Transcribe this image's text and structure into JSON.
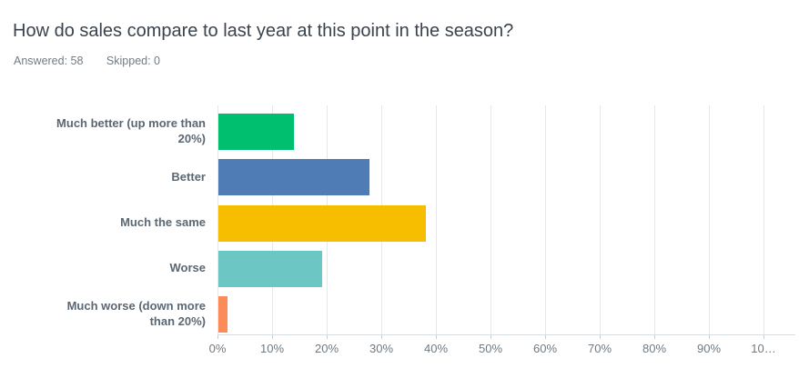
{
  "header": {
    "title": "How do sales compare to last year at this point in the season?",
    "answered_label": "Answered: 58",
    "skipped_label": "Skipped: 0"
  },
  "chart_data": {
    "type": "bar",
    "orientation": "horizontal",
    "title": "How do sales compare to last year at this point in the season?",
    "categories": [
      "Much better (up more than 20%)",
      "Better",
      "Much the same",
      "Worse",
      "Much worse (down more than 20%)"
    ],
    "values": [
      13.79,
      27.59,
      37.93,
      18.97,
      1.72
    ],
    "bar_colors": [
      "#00BF6F",
      "#507CB6",
      "#F7BE00",
      "#6BC6C4",
      "#FB8C5A"
    ],
    "x_tick_labels": [
      "0%",
      "10%",
      "20%",
      "30%",
      "40%",
      "50%",
      "60%",
      "70%",
      "80%",
      "90%",
      "10…"
    ],
    "x_tick_values": [
      0,
      10,
      20,
      30,
      40,
      50,
      60,
      70,
      80,
      90,
      100
    ],
    "xlim": [
      0,
      100
    ],
    "grid": true,
    "legend": false,
    "colors": {
      "grid": "#E5E7E8",
      "axis": "#DADDDF",
      "tick_label": "#6E7A83",
      "category_label": "#5B6772",
      "title": "#3A434D",
      "meta": "#747C83"
    }
  }
}
